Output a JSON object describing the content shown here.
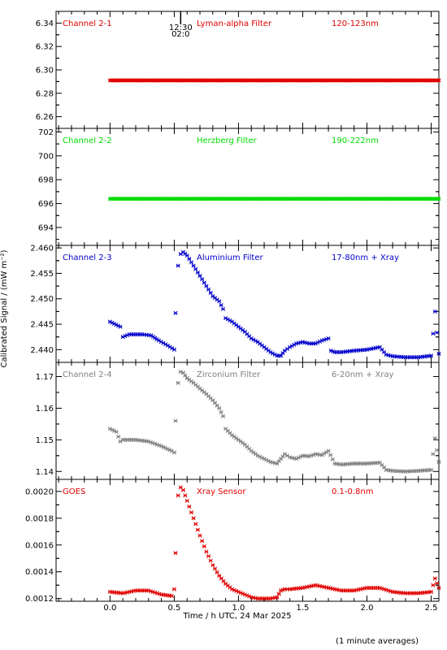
{
  "chart_data": {
    "type": "scatter",
    "xlabel": "Time / h UTC, 24 Mar 2025",
    "ylabel": "Calibrated Signal / (mW m⁻²)",
    "footnote": "(1 minute averages)",
    "xlim": [
      -0.42,
      2.56
    ],
    "xticks": [
      0.0,
      0.5,
      1.0,
      1.5,
      2.0,
      2.5
    ],
    "x_tick_labels": [
      "0.0",
      "0.5",
      "1.0",
      "1.5",
      "2.0",
      "2.5"
    ],
    "marker_annotation": {
      "x": 0.55,
      "lines": [
        "12:30",
        "02:0"
      ]
    },
    "panels": [
      {
        "channel": "Channel 2-1",
        "filter": "Lyman-alpha Filter",
        "band": "120-123nm",
        "color": "#e00000",
        "ylim": [
          6.25,
          6.35
        ],
        "yticks": [
          6.26,
          6.28,
          6.3,
          6.32,
          6.34
        ],
        "ytick_labels": [
          "6.26",
          "6.28",
          "6.30",
          "6.32",
          "6.34"
        ],
        "series": [
          {
            "x": [
              0.0,
              2.56
            ],
            "y": [
              6.291,
              6.291
            ]
          }
        ]
      },
      {
        "channel": "Channel 2-2",
        "filter": "Herzberg Filter",
        "band": "190-222nm",
        "color": "#00dd00",
        "ylim": [
          692.5,
          702.3
        ],
        "yticks": [
          694,
          696,
          698,
          700,
          702
        ],
        "ytick_labels": [
          "694",
          "696",
          "698",
          "700",
          "702"
        ],
        "series": [
          {
            "x": [
              0.0,
              2.56
            ],
            "y": [
              696.4,
              696.4
            ]
          }
        ]
      },
      {
        "channel": "Channel 2-3",
        "filter": "Aluminium Filter",
        "band": "17-80nm + Xray",
        "color": "#0000cc",
        "ylim": [
          2.4375,
          2.4605
        ],
        "yticks": [
          2.44,
          2.445,
          2.45,
          2.455,
          2.46
        ],
        "ytick_labels": [
          "2.440",
          "2.445",
          "2.450",
          "2.455",
          "2.460"
        ],
        "series": [
          {
            "x": [
              0.0,
              0.08,
              0.1,
              0.15,
              0.25,
              0.32,
              0.38,
              0.45,
              0.5,
              0.51,
              0.53,
              0.55,
              0.57,
              0.6,
              0.65,
              0.7,
              0.75,
              0.8,
              0.85,
              0.88,
              0.9,
              0.95,
              1.0,
              1.05,
              1.1,
              1.15,
              1.2,
              1.25,
              1.3,
              1.33,
              1.36,
              1.4,
              1.45,
              1.5,
              1.55,
              1.6,
              1.65,
              1.7,
              1.72,
              1.75,
              1.8,
              1.9,
              2.0,
              2.1,
              2.15,
              2.2,
              2.3,
              2.4,
              2.5,
              2.53,
              2.56
            ],
            "y": [
              2.4455,
              2.4445,
              2.4425,
              2.443,
              2.443,
              2.4428,
              2.4418,
              2.4408,
              2.44,
              2.4472,
              2.4565,
              2.4588,
              2.4592,
              2.4585,
              2.4565,
              2.4545,
              2.4525,
              2.4505,
              2.4495,
              2.448,
              2.4462,
              2.4455,
              2.4445,
              2.4435,
              2.4422,
              2.4415,
              2.4405,
              2.4395,
              2.4388,
              2.4388,
              2.4398,
              2.4405,
              2.4412,
              2.4415,
              2.4412,
              2.4412,
              2.4418,
              2.4422,
              2.4398,
              2.4395,
              2.4395,
              2.4398,
              2.44,
              2.4405,
              2.439,
              2.4387,
              2.4385,
              2.4385,
              2.4388,
              2.4475,
              2.4392
            ]
          }
        ]
      },
      {
        "channel": "Channel 2-4",
        "filter": "Zirconium Filter",
        "band": "6-20nm + Xray",
        "color": "#808080",
        "ylim": [
          1.1375,
          1.1745
        ],
        "yticks": [
          1.14,
          1.15,
          1.16,
          1.17
        ],
        "ytick_labels": [
          "1.14",
          "1.15",
          "1.16",
          "1.17"
        ],
        "series": [
          {
            "x": [
              0.0,
              0.05,
              0.08,
              0.1,
              0.2,
              0.3,
              0.4,
              0.48,
              0.5,
              0.51,
              0.53,
              0.55,
              0.57,
              0.6,
              0.65,
              0.7,
              0.75,
              0.8,
              0.85,
              0.88,
              0.9,
              0.95,
              1.0,
              1.05,
              1.1,
              1.15,
              1.2,
              1.25,
              1.3,
              1.33,
              1.36,
              1.4,
              1.45,
              1.5,
              1.55,
              1.6,
              1.65,
              1.7,
              1.75,
              1.8,
              1.9,
              2.0,
              2.1,
              2.15,
              2.2,
              2.3,
              2.4,
              2.5,
              2.53,
              2.56
            ],
            "y": [
              1.1535,
              1.1525,
              1.1495,
              1.15,
              1.15,
              1.1495,
              1.148,
              1.1465,
              1.146,
              1.156,
              1.168,
              1.1715,
              1.1712,
              1.1695,
              1.168,
              1.1662,
              1.1645,
              1.1625,
              1.16,
              1.1575,
              1.1535,
              1.1515,
              1.15,
              1.1485,
              1.1465,
              1.145,
              1.144,
              1.143,
              1.1425,
              1.144,
              1.1455,
              1.1445,
              1.144,
              1.145,
              1.1448,
              1.1455,
              1.1452,
              1.1465,
              1.1425,
              1.1422,
              1.1425,
              1.1425,
              1.1428,
              1.1405,
              1.1402,
              1.14,
              1.1402,
              1.1405,
              1.1505,
              1.143
            ]
          }
        ]
      },
      {
        "channel": "GOES",
        "filter": "Xray Sensor",
        "band": "0.1-0.8nm",
        "color": "#e00000",
        "ylim": [
          0.00118,
          0.00209
        ],
        "yticks": [
          0.0012,
          0.0014,
          0.0016,
          0.0018,
          0.002
        ],
        "ytick_labels": [
          "0.0012",
          "0.0014",
          "0.0016",
          "0.0018",
          "0.0020"
        ],
        "series": [
          {
            "x": [
              0.0,
              0.1,
              0.2,
              0.3,
              0.4,
              0.48,
              0.5,
              0.51,
              0.53,
              0.55,
              0.57,
              0.6,
              0.65,
              0.7,
              0.75,
              0.8,
              0.85,
              0.9,
              0.95,
              1.0,
              1.05,
              1.1,
              1.15,
              1.2,
              1.25,
              1.3,
              1.33,
              1.36,
              1.4,
              1.5,
              1.6,
              1.7,
              1.8,
              1.9,
              2.0,
              2.1,
              2.2,
              2.3,
              2.4,
              2.5,
              2.53,
              2.56
            ],
            "y": [
              0.00125,
              0.00124,
              0.00126,
              0.00126,
              0.00123,
              0.00122,
              0.00127,
              0.00154,
              0.00197,
              0.00203,
              0.00201,
              0.00193,
              0.0018,
              0.00167,
              0.00155,
              0.00145,
              0.00137,
              0.00131,
              0.00127,
              0.00125,
              0.00123,
              0.00121,
              0.0012,
              0.0012,
              0.0012,
              0.00121,
              0.00126,
              0.00127,
              0.00127,
              0.00128,
              0.0013,
              0.00128,
              0.00126,
              0.00126,
              0.00128,
              0.00128,
              0.00125,
              0.00124,
              0.00124,
              0.00125,
              0.00135,
              0.00128
            ]
          }
        ]
      }
    ]
  }
}
